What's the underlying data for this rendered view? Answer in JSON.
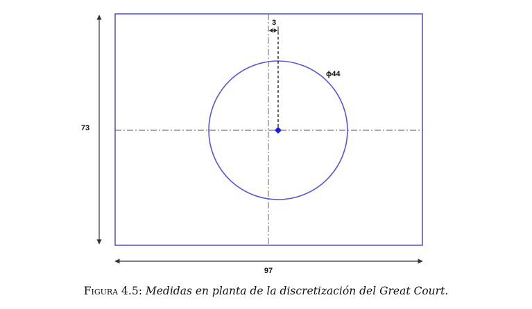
{
  "dimensions": {
    "width": "97",
    "height": "73",
    "offset": "3",
    "diameter": "ϕ44"
  },
  "caption": {
    "label": "Figura 4.5:",
    "text": "Medidas en planta de la discretización del",
    "emphasis": "Great Court",
    "end": "."
  },
  "colors": {
    "outline": "#5555dd",
    "center_point": "#1a1ae0",
    "centerline": "#555555",
    "dimension": "#333333"
  }
}
